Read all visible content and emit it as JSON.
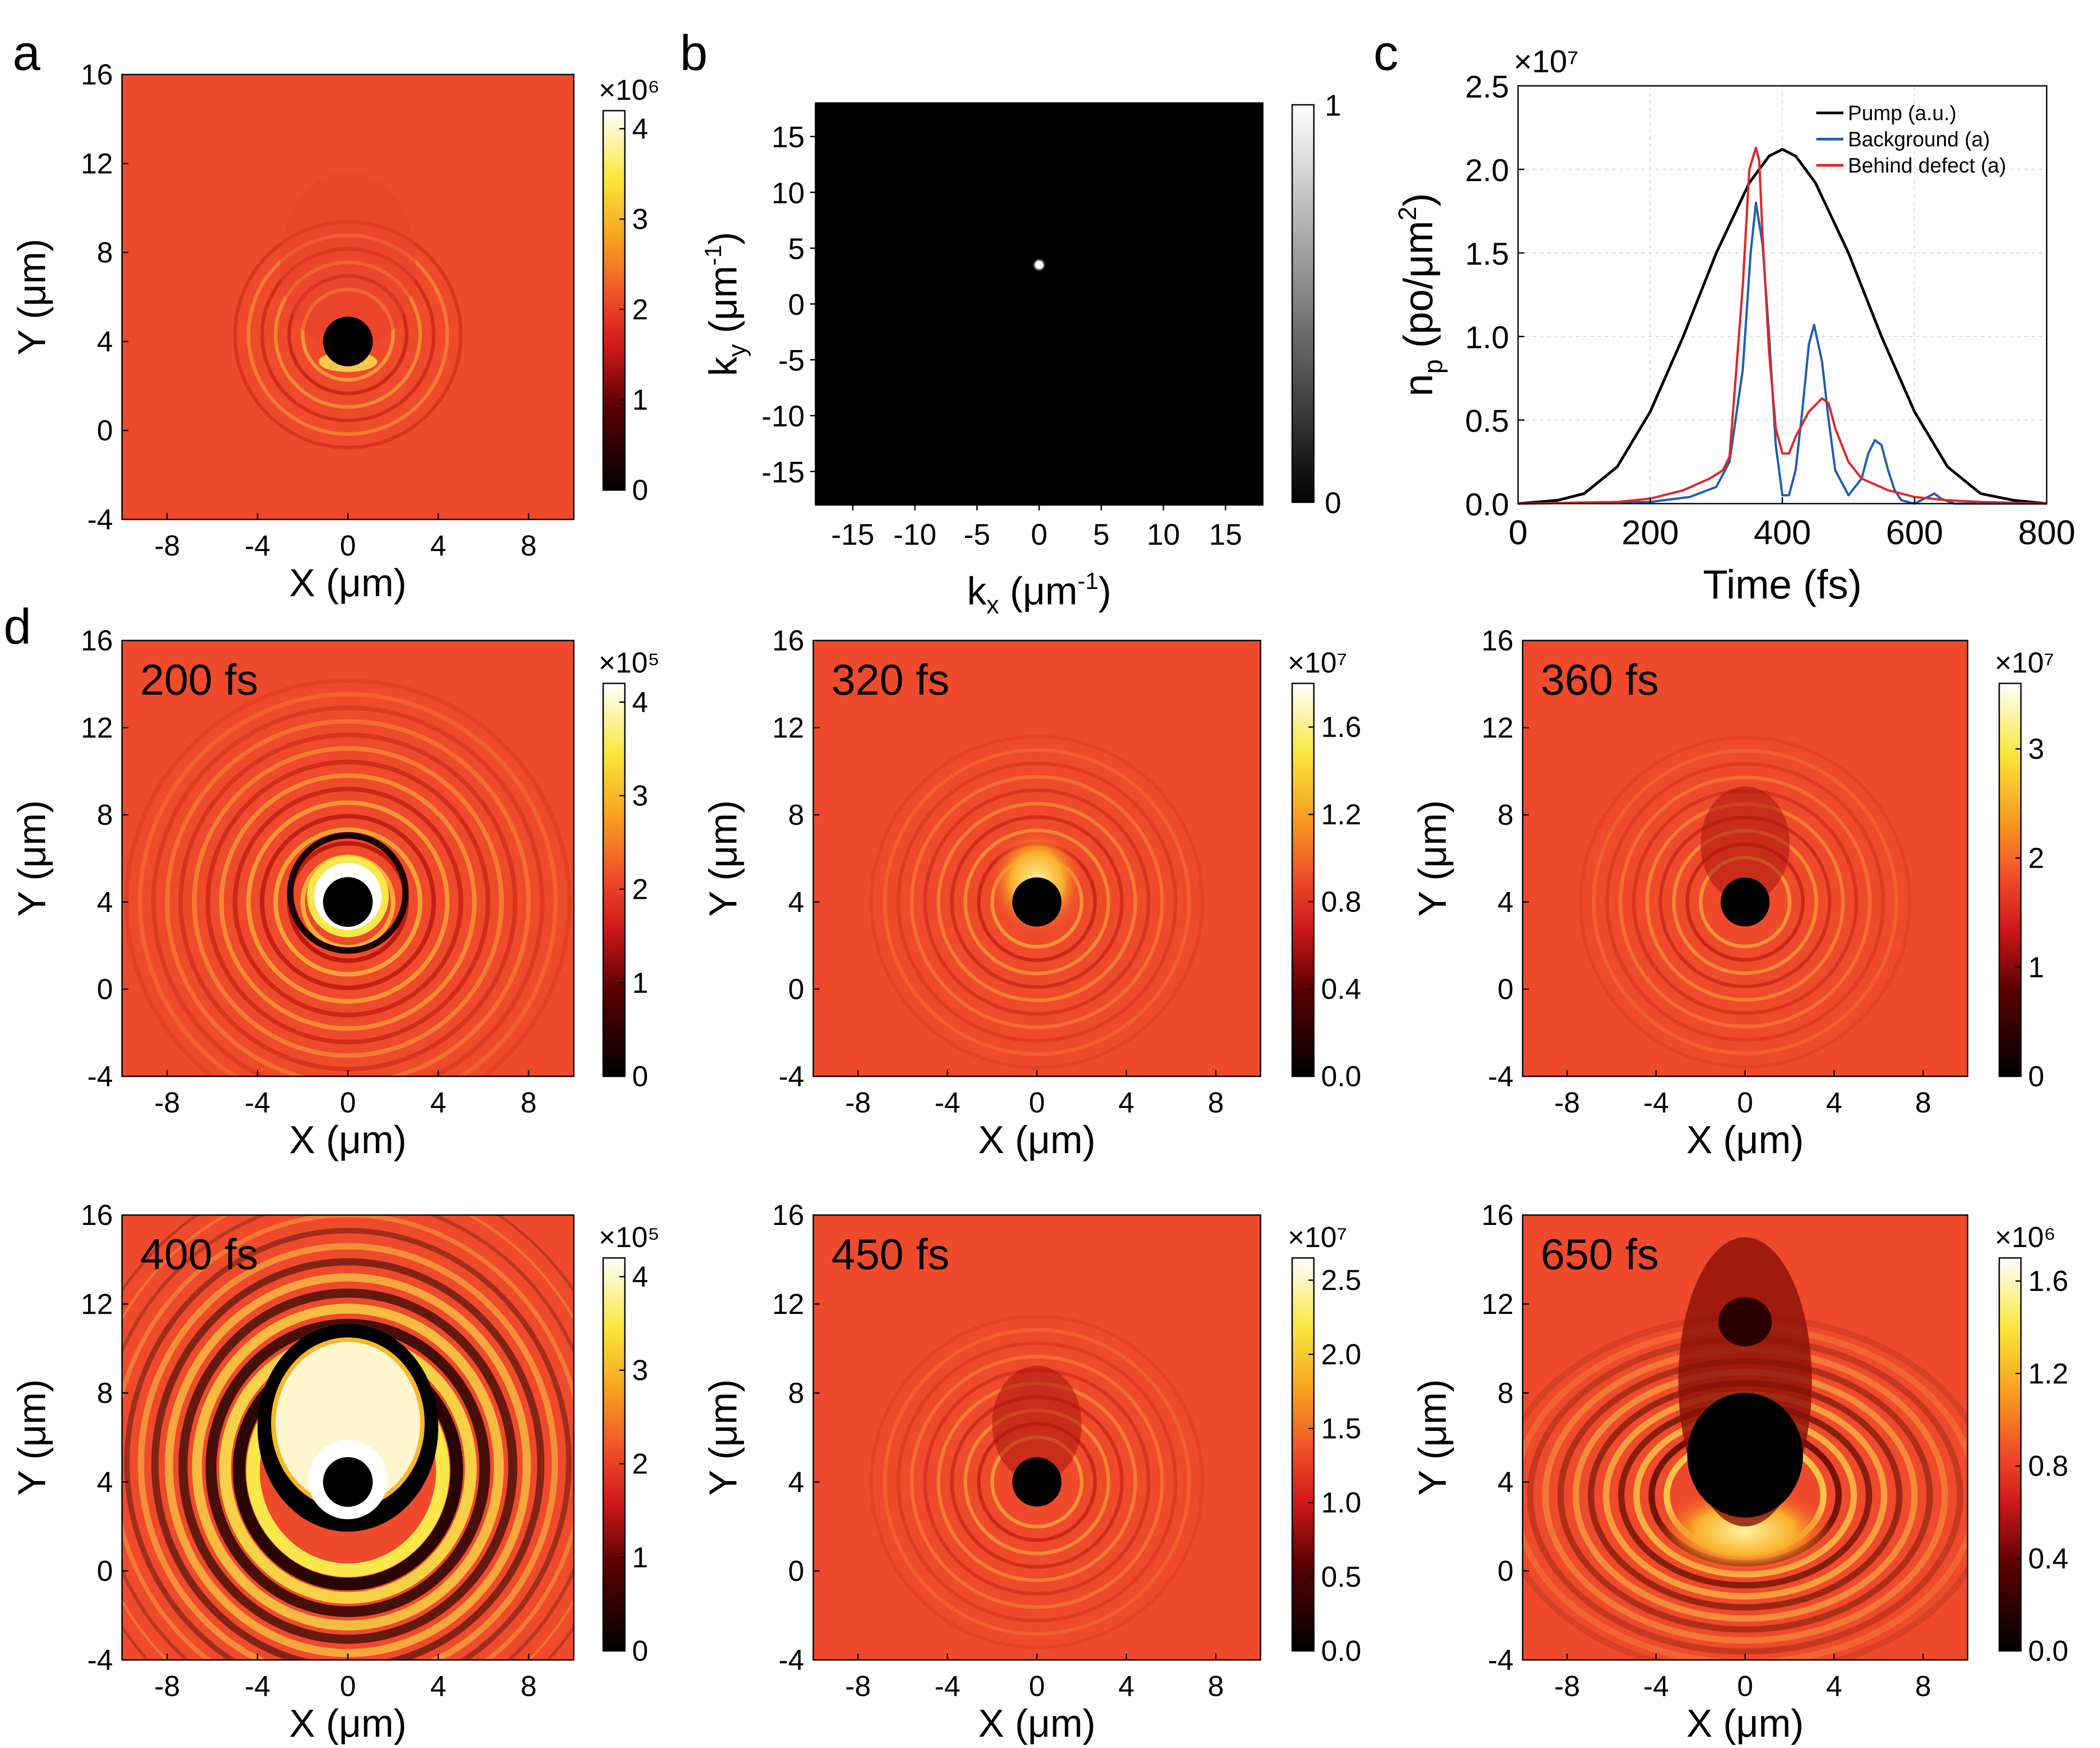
{
  "chart_data": [
    {
      "panel_letter": "a",
      "type": "heatmap",
      "xlabel": "X (μm)",
      "ylabel": "Y (μm)",
      "xlim": [
        -10,
        10
      ],
      "ylim": [
        -4,
        16
      ],
      "xticks": [
        "-8",
        "-4",
        "0",
        "4",
        "8"
      ],
      "yticks": [
        "-4",
        "0",
        "4",
        "8",
        "12",
        "16"
      ],
      "colormap": "black-red-yellow-white",
      "colorbar": {
        "multiplier": "×10⁶",
        "ticks": [
          "0",
          "1",
          "2",
          "3",
          "4"
        ],
        "range": [
          0,
          4.2
        ]
      },
      "background_level": 1.7,
      "defect_center": [
        0,
        4
      ],
      "defect_radius": 1.1,
      "description_label": "",
      "rings": 6
    },
    {
      "panel_letter": "b",
      "type": "heatmap",
      "xlabel": "kₓ (μm⁻¹)",
      "ylabel": "kᵧ (μm⁻¹)",
      "xlabel_parts": [
        "k",
        "x",
        " (μm",
        "-1",
        ")"
      ],
      "ylabel_parts": [
        "k",
        "y",
        " (μm",
        "-1",
        ")"
      ],
      "xlim": [
        -18,
        18
      ],
      "ylim": [
        -18,
        18
      ],
      "xticks": [
        "-15",
        "-10",
        "-5",
        "0",
        "5",
        "10",
        "15"
      ],
      "yticks": [
        "-15",
        "-10",
        "-5",
        "0",
        "5",
        "10",
        "15"
      ],
      "colormap": "gray",
      "colorbar": {
        "ticks": [
          "0",
          "1"
        ],
        "range": [
          0,
          1
        ]
      },
      "peak": [
        0,
        3.5
      ]
    },
    {
      "panel_letter": "c",
      "type": "line",
      "xlabel": "Time (fs)",
      "ylabel": "n",
      "ylabel_sub": "p",
      "ylabel_unit": " (po/μm",
      "ylabel_sup": "2",
      "ylabel_end": ")",
      "multiplier": "×10⁷",
      "xlim": [
        0,
        800
      ],
      "ylim": [
        0,
        2.5
      ],
      "xticks": [
        "0",
        "200",
        "400",
        "600",
        "800"
      ],
      "yticks": [
        "0.0",
        "0.5",
        "1.0",
        "1.5",
        "2.0",
        "2.5"
      ],
      "grid": true,
      "legend_position": "top-right",
      "series": [
        {
          "name": "Pump (a.u.)",
          "color": "#000000",
          "x": [
            0,
            60,
            100,
            150,
            200,
            250,
            300,
            350,
            380,
            400,
            420,
            450,
            500,
            550,
            600,
            650,
            700,
            750,
            800
          ],
          "y": [
            0,
            0.02,
            0.06,
            0.22,
            0.55,
            1.0,
            1.5,
            1.92,
            2.08,
            2.12,
            2.08,
            1.92,
            1.5,
            1.0,
            0.55,
            0.22,
            0.06,
            0.02,
            0
          ]
        },
        {
          "name": "Background (a)",
          "color": "#1f5fb0",
          "x": [
            0,
            200,
            260,
            300,
            320,
            340,
            352,
            360,
            370,
            380,
            390,
            400,
            410,
            420,
            430,
            440,
            448,
            460,
            470,
            480,
            500,
            520,
            530,
            540,
            550,
            560,
            570,
            580,
            600,
            620,
            630,
            640,
            660,
            700,
            800
          ],
          "y": [
            0,
            0.01,
            0.04,
            0.1,
            0.25,
            0.8,
            1.5,
            1.8,
            1.55,
            1.0,
            0.35,
            0.05,
            0.05,
            0.2,
            0.55,
            0.95,
            1.07,
            0.85,
            0.5,
            0.2,
            0.05,
            0.15,
            0.3,
            0.38,
            0.35,
            0.2,
            0.08,
            0.02,
            0.0,
            0.04,
            0.06,
            0.03,
            0.0,
            0.0,
            0.0
          ]
        },
        {
          "name": "Behind defect (a)",
          "color": "#e0262a",
          "x": [
            0,
            150,
            200,
            250,
            290,
            310,
            320,
            340,
            350,
            360,
            365,
            370,
            380,
            390,
            400,
            410,
            420,
            440,
            460,
            470,
            480,
            500,
            520,
            560,
            600,
            650,
            700,
            800
          ],
          "y": [
            0,
            0.01,
            0.03,
            0.08,
            0.15,
            0.2,
            0.28,
            1.3,
            2.0,
            2.13,
            2.05,
            1.6,
            0.9,
            0.45,
            0.3,
            0.3,
            0.4,
            0.55,
            0.63,
            0.6,
            0.45,
            0.25,
            0.15,
            0.08,
            0.04,
            0.02,
            0.01,
            0
          ]
        }
      ]
    },
    {
      "panel_letter": "d",
      "type": "heatmap",
      "title": "200 fs",
      "xlabel": "X (μm)",
      "ylabel": "Y (μm)",
      "xlim": [
        -10,
        10
      ],
      "ylim": [
        -4,
        16
      ],
      "xticks": [
        "-8",
        "-4",
        "0",
        "4",
        "8"
      ],
      "yticks": [
        "-4",
        "0",
        "4",
        "8",
        "12",
        "16"
      ],
      "colorbar": {
        "multiplier": "×10⁵",
        "ticks": [
          "0",
          "1",
          "2",
          "3",
          "4"
        ],
        "range": [
          0,
          4.2
        ]
      },
      "defect_center": [
        0,
        4
      ],
      "defect_radius": 1.1,
      "rings": 14
    },
    {
      "type": "heatmap",
      "title": "320 fs",
      "xlabel": "X (μm)",
      "ylabel": "Y (μm)",
      "xlim": [
        -10,
        10
      ],
      "ylim": [
        -4,
        16
      ],
      "xticks": [
        "-8",
        "-4",
        "0",
        "4",
        "8"
      ],
      "yticks": [
        "-4",
        "0",
        "4",
        "8",
        "12",
        "16"
      ],
      "colorbar": {
        "multiplier": "×10⁷",
        "ticks": [
          "0.0",
          "0.4",
          "0.8",
          "1.2",
          "1.6"
        ],
        "range": [
          0,
          1.8
        ]
      },
      "defect_center": [
        0,
        4
      ],
      "defect_radius": 1.1,
      "rings": 10
    },
    {
      "type": "heatmap",
      "title": "360 fs",
      "xlabel": "X (μm)",
      "ylabel": "Y (μm)",
      "xlim": [
        -10,
        10
      ],
      "ylim": [
        -4,
        16
      ],
      "xticks": [
        "-8",
        "-4",
        "0",
        "4",
        "8"
      ],
      "yticks": [
        "-4",
        "0",
        "4",
        "8",
        "12",
        "16"
      ],
      "colorbar": {
        "multiplier": "×10⁷",
        "ticks": [
          "0",
          "1",
          "2",
          "3"
        ],
        "range": [
          0,
          3.6
        ]
      },
      "defect_center": [
        0,
        4
      ],
      "defect_radius": 1.1,
      "rings": 10
    },
    {
      "type": "heatmap",
      "title": "400 fs",
      "xlabel": "X (μm)",
      "ylabel": "Y (μm)",
      "xlim": [
        -10,
        10
      ],
      "ylim": [
        -4,
        16
      ],
      "xticks": [
        "-8",
        "-4",
        "0",
        "4",
        "8"
      ],
      "yticks": [
        "-4",
        "0",
        "4",
        "8",
        "12",
        "16"
      ],
      "colorbar": {
        "multiplier": "×10⁵",
        "ticks": [
          "0",
          "1",
          "2",
          "3",
          "4"
        ],
        "range": [
          0,
          4.2
        ]
      },
      "defect_center": [
        0,
        4
      ],
      "defect_radius": 1.1,
      "rings": 14
    },
    {
      "type": "heatmap",
      "title": "450 fs",
      "xlabel": "X (μm)",
      "ylabel": "Y (μm)",
      "xlim": [
        -10,
        10
      ],
      "ylim": [
        -4,
        16
      ],
      "xticks": [
        "-8",
        "-4",
        "0",
        "4",
        "8"
      ],
      "yticks": [
        "-4",
        "0",
        "4",
        "8",
        "12",
        "16"
      ],
      "colorbar": {
        "multiplier": "×10⁷",
        "ticks": [
          "0.0",
          "0.5",
          "1.0",
          "1.5",
          "2.0",
          "2.5"
        ],
        "range": [
          0,
          2.65
        ]
      },
      "defect_center": [
        0,
        4
      ],
      "defect_radius": 1.1,
      "rings": 10
    },
    {
      "type": "heatmap",
      "title": "650 fs",
      "xlabel": "X (μm)",
      "ylabel": "Y (μm)",
      "xlim": [
        -10,
        10
      ],
      "ylim": [
        -4,
        16
      ],
      "xticks": [
        "-8",
        "-4",
        "0",
        "4",
        "8"
      ],
      "yticks": [
        "-4",
        "0",
        "4",
        "8",
        "12",
        "16"
      ],
      "colorbar": {
        "multiplier": "×10⁶",
        "ticks": [
          "0.0",
          "0.4",
          "0.8",
          "1.2",
          "1.6"
        ],
        "range": [
          0,
          1.7
        ]
      },
      "defect_center": [
        0,
        4
      ],
      "defect_radius": 1.3,
      "rings": 12
    }
  ]
}
